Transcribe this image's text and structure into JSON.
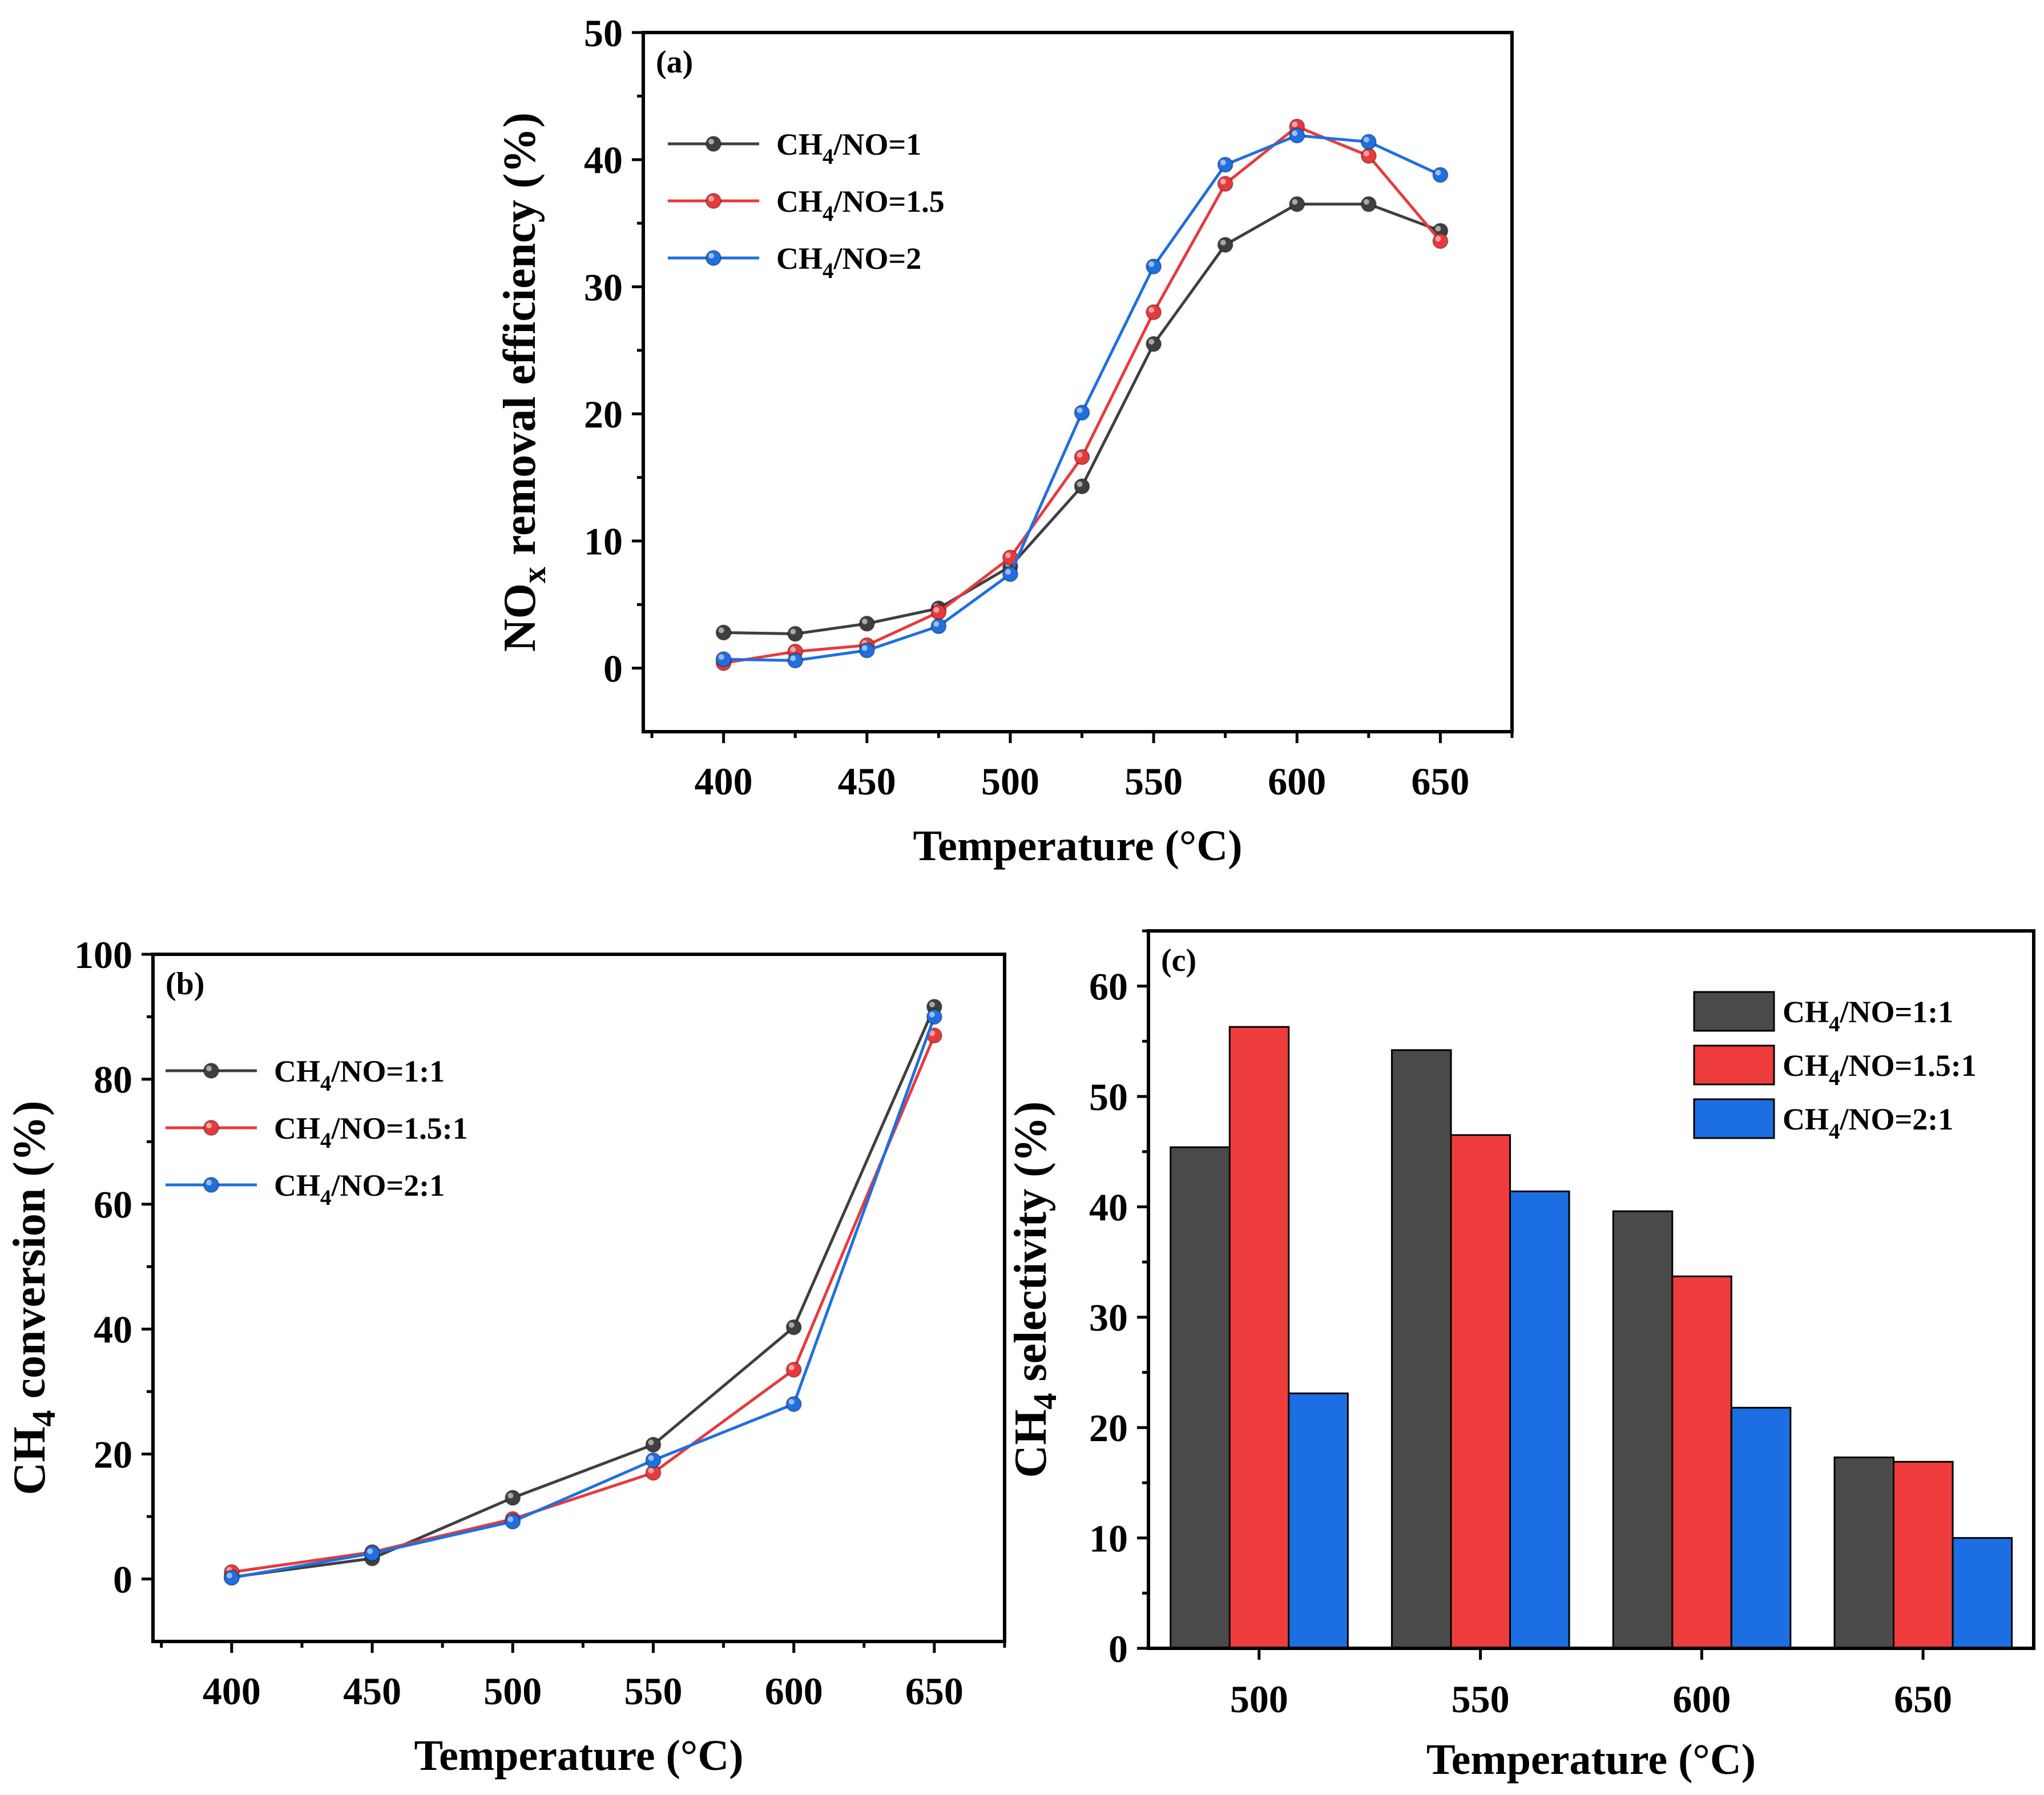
{
  "colors": {
    "s1": "#3f3f3f",
    "s2": "#e8393c",
    "s3": "#1f6fe0",
    "bar1": "#4a4a4a",
    "bar2": "#ee3b3b",
    "bar3": "#1c6fe3"
  },
  "chart_data": [
    {
      "id": "a",
      "type": "line",
      "panel_label": "(a)",
      "xlabel": "Temperature (°C)",
      "ylabel_main": "NO",
      "ylabel_sub": "x",
      "ylabel_rest": " removal efficiency (%)",
      "xlim": [
        372,
        675
      ],
      "ylim": [
        -5,
        50
      ],
      "xticks": [
        400,
        450,
        500,
        550,
        600,
        650
      ],
      "yticks": [
        0,
        10,
        20,
        30,
        40,
        50
      ],
      "legend_position": "top-left",
      "x": [
        400,
        425,
        450,
        475,
        500,
        525,
        550,
        575,
        600,
        625,
        650
      ],
      "series": [
        {
          "name": "CH4/NO=1",
          "legend_main": "CH",
          "legend_sub": "4",
          "legend_rest": "/NO=1",
          "color_key": "s1",
          "values": [
            2.8,
            2.7,
            3.5,
            4.7,
            8.0,
            14.3,
            25.5,
            33.3,
            36.5,
            36.5,
            34.4
          ]
        },
        {
          "name": "CH4/NO=1.5",
          "legend_main": "CH",
          "legend_sub": "4",
          "legend_rest": "/NO=1.5",
          "color_key": "s2",
          "values": [
            0.4,
            1.3,
            1.8,
            4.4,
            8.7,
            16.6,
            28.0,
            38.1,
            42.6,
            40.3,
            33.6
          ]
        },
        {
          "name": "CH4/NO=2",
          "legend_main": "CH",
          "legend_sub": "4",
          "legend_rest": "/NO=2",
          "color_key": "s3",
          "values": [
            0.7,
            0.6,
            1.4,
            3.3,
            7.4,
            20.1,
            31.6,
            39.6,
            41.9,
            41.4,
            38.8
          ]
        }
      ]
    },
    {
      "id": "b",
      "type": "line",
      "panel_label": "(b)",
      "xlabel": "Temperature (°C)",
      "ylabel_main": "CH",
      "ylabel_sub": "4",
      "ylabel_rest": " conversion (%)",
      "xlim": [
        372,
        675
      ],
      "ylim": [
        -10,
        100
      ],
      "xticks": [
        400,
        450,
        500,
        550,
        600,
        650
      ],
      "yticks": [
        0,
        20,
        40,
        60,
        80,
        100
      ],
      "legend_position": "top-left",
      "x": [
        400,
        450,
        500,
        550,
        600,
        650
      ],
      "series": [
        {
          "name": "CH4/NO=1:1",
          "legend_main": "CH",
          "legend_sub": "4",
          "legend_rest": "/NO=1:1",
          "color_key": "s1",
          "values": [
            0.3,
            3.3,
            13.0,
            21.5,
            40.3,
            91.6
          ]
        },
        {
          "name": "CH4/NO=1.5:1",
          "legend_main": "CH",
          "legend_sub": "4",
          "legend_rest": "/NO=1.5:1",
          "color_key": "s2",
          "values": [
            1.1,
            4.3,
            9.6,
            17.0,
            33.5,
            87.0
          ]
        },
        {
          "name": "CH4/NO=2:1",
          "legend_main": "CH",
          "legend_sub": "4",
          "legend_rest": "/NO=2:1",
          "color_key": "s3",
          "values": [
            0.2,
            4.1,
            9.2,
            19.0,
            28.0,
            90.0
          ]
        }
      ]
    },
    {
      "id": "c",
      "type": "bar",
      "panel_label": "(c)",
      "xlabel": "Temperature (°C)",
      "ylabel_main": "CH",
      "ylabel_sub": "4",
      "ylabel_rest": " selectivity (%)",
      "categories": [
        "500",
        "550",
        "600",
        "650"
      ],
      "ylim": [
        0,
        65
      ],
      "yticks": [
        0,
        10,
        20,
        30,
        40,
        50,
        60
      ],
      "legend_position": "top-right",
      "series": [
        {
          "name": "CH4/NO=1:1",
          "legend_main": "CH",
          "legend_sub": "4",
          "legend_rest": "/NO=1:1",
          "color_key": "bar1",
          "values": [
            45.4,
            54.2,
            39.6,
            17.3
          ]
        },
        {
          "name": "CH4/NO=1.5:1",
          "legend_main": "CH",
          "legend_sub": "4",
          "legend_rest": "/NO=1.5:1",
          "color_key": "bar2",
          "values": [
            56.3,
            46.5,
            33.7,
            16.9
          ]
        },
        {
          "name": "CH4/NO=2:1",
          "legend_main": "CH",
          "legend_sub": "4",
          "legend_rest": "/NO=2:1",
          "color_key": "bar3",
          "values": [
            23.1,
            41.4,
            21.8,
            10.0
          ]
        }
      ]
    }
  ]
}
